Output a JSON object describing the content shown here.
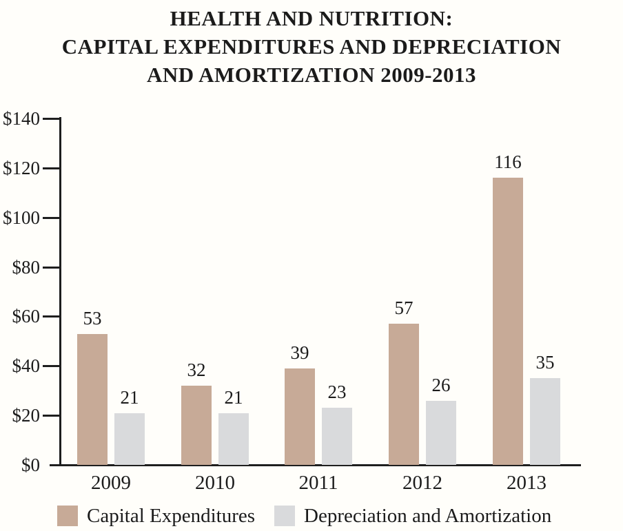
{
  "title_lines": [
    "HEALTH AND NUTRITION:",
    "CAPITAL EXPENDITURES AND DEPRECIATION",
    "AND AMORTIZATION 2009-2013"
  ],
  "chart_data": {
    "type": "bar",
    "title": "HEALTH AND NUTRITION: CAPITAL EXPENDITURES AND DEPRECIATION AND AMORTIZATION 2009-2013",
    "categories": [
      "2009",
      "2010",
      "2011",
      "2012",
      "2013"
    ],
    "series": [
      {
        "name": "Capital Expenditures",
        "color": "#c7aa97",
        "values": [
          53,
          32,
          39,
          57,
          116
        ]
      },
      {
        "name": "Depreciation and Amortization",
        "color": "#d9dadc",
        "values": [
          21,
          21,
          23,
          26,
          35
        ]
      }
    ],
    "ylim": [
      0,
      140
    ],
    "ytick_step": 20,
    "ytick_labels": [
      "$0",
      "$20",
      "$40",
      "$60",
      "$80",
      "$100",
      "$120",
      "$140"
    ],
    "grid": false,
    "legend_position": "bottom",
    "value_labels_shown": true,
    "axis_color": "#1e1e1e",
    "text_color": "#1b1b1b",
    "background_color": "#fffefa"
  }
}
